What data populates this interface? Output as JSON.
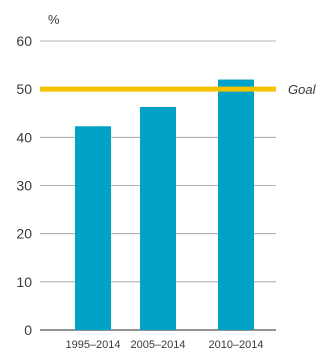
{
  "chart_data": {
    "type": "bar",
    "categories": [
      "1995–2014",
      "2005–2014",
      "2010–2014"
    ],
    "values": [
      42.3,
      46.3,
      52.0
    ],
    "ylabel": "%",
    "ylim": [
      0,
      60
    ],
    "yticks": [
      0,
      10,
      20,
      30,
      40,
      50,
      60
    ],
    "grid": true,
    "goal": {
      "label": "Goal",
      "value": 50
    },
    "colors": {
      "bar": "#00a3c7",
      "goal": "#f5c200",
      "grid": "#9a9a9a",
      "axis": "#555555"
    }
  }
}
